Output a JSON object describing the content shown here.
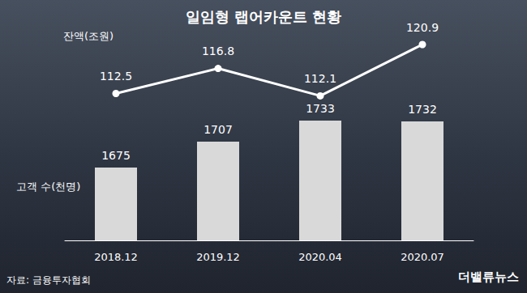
{
  "chart_data": {
    "type": "bar",
    "title": "일임형 랩어카운트 현황",
    "source": "자료: 금융투자협회",
    "annotations": [
      "더밸류뉴스"
    ],
    "categories": [
      "2018.12",
      "2019.12",
      "2020.04",
      "2020.07"
    ],
    "series": [
      {
        "name": "고객 수(천명)",
        "type": "bar",
        "color": "#d9d9d9",
        "values": [
          1675,
          1707,
          1733,
          1732
        ]
      },
      {
        "name": "잔액(조원)",
        "type": "line",
        "color": "#ffffff",
        "marker": "circle",
        "axis": "y2",
        "values": [
          112.5,
          116.8,
          112.1,
          120.9
        ]
      }
    ],
    "ylim": [
      1585,
      1845
    ],
    "y2lim": [
      87.3,
      123.4
    ],
    "data_labels": true,
    "tick_labels": "x",
    "grid": false
  }
}
